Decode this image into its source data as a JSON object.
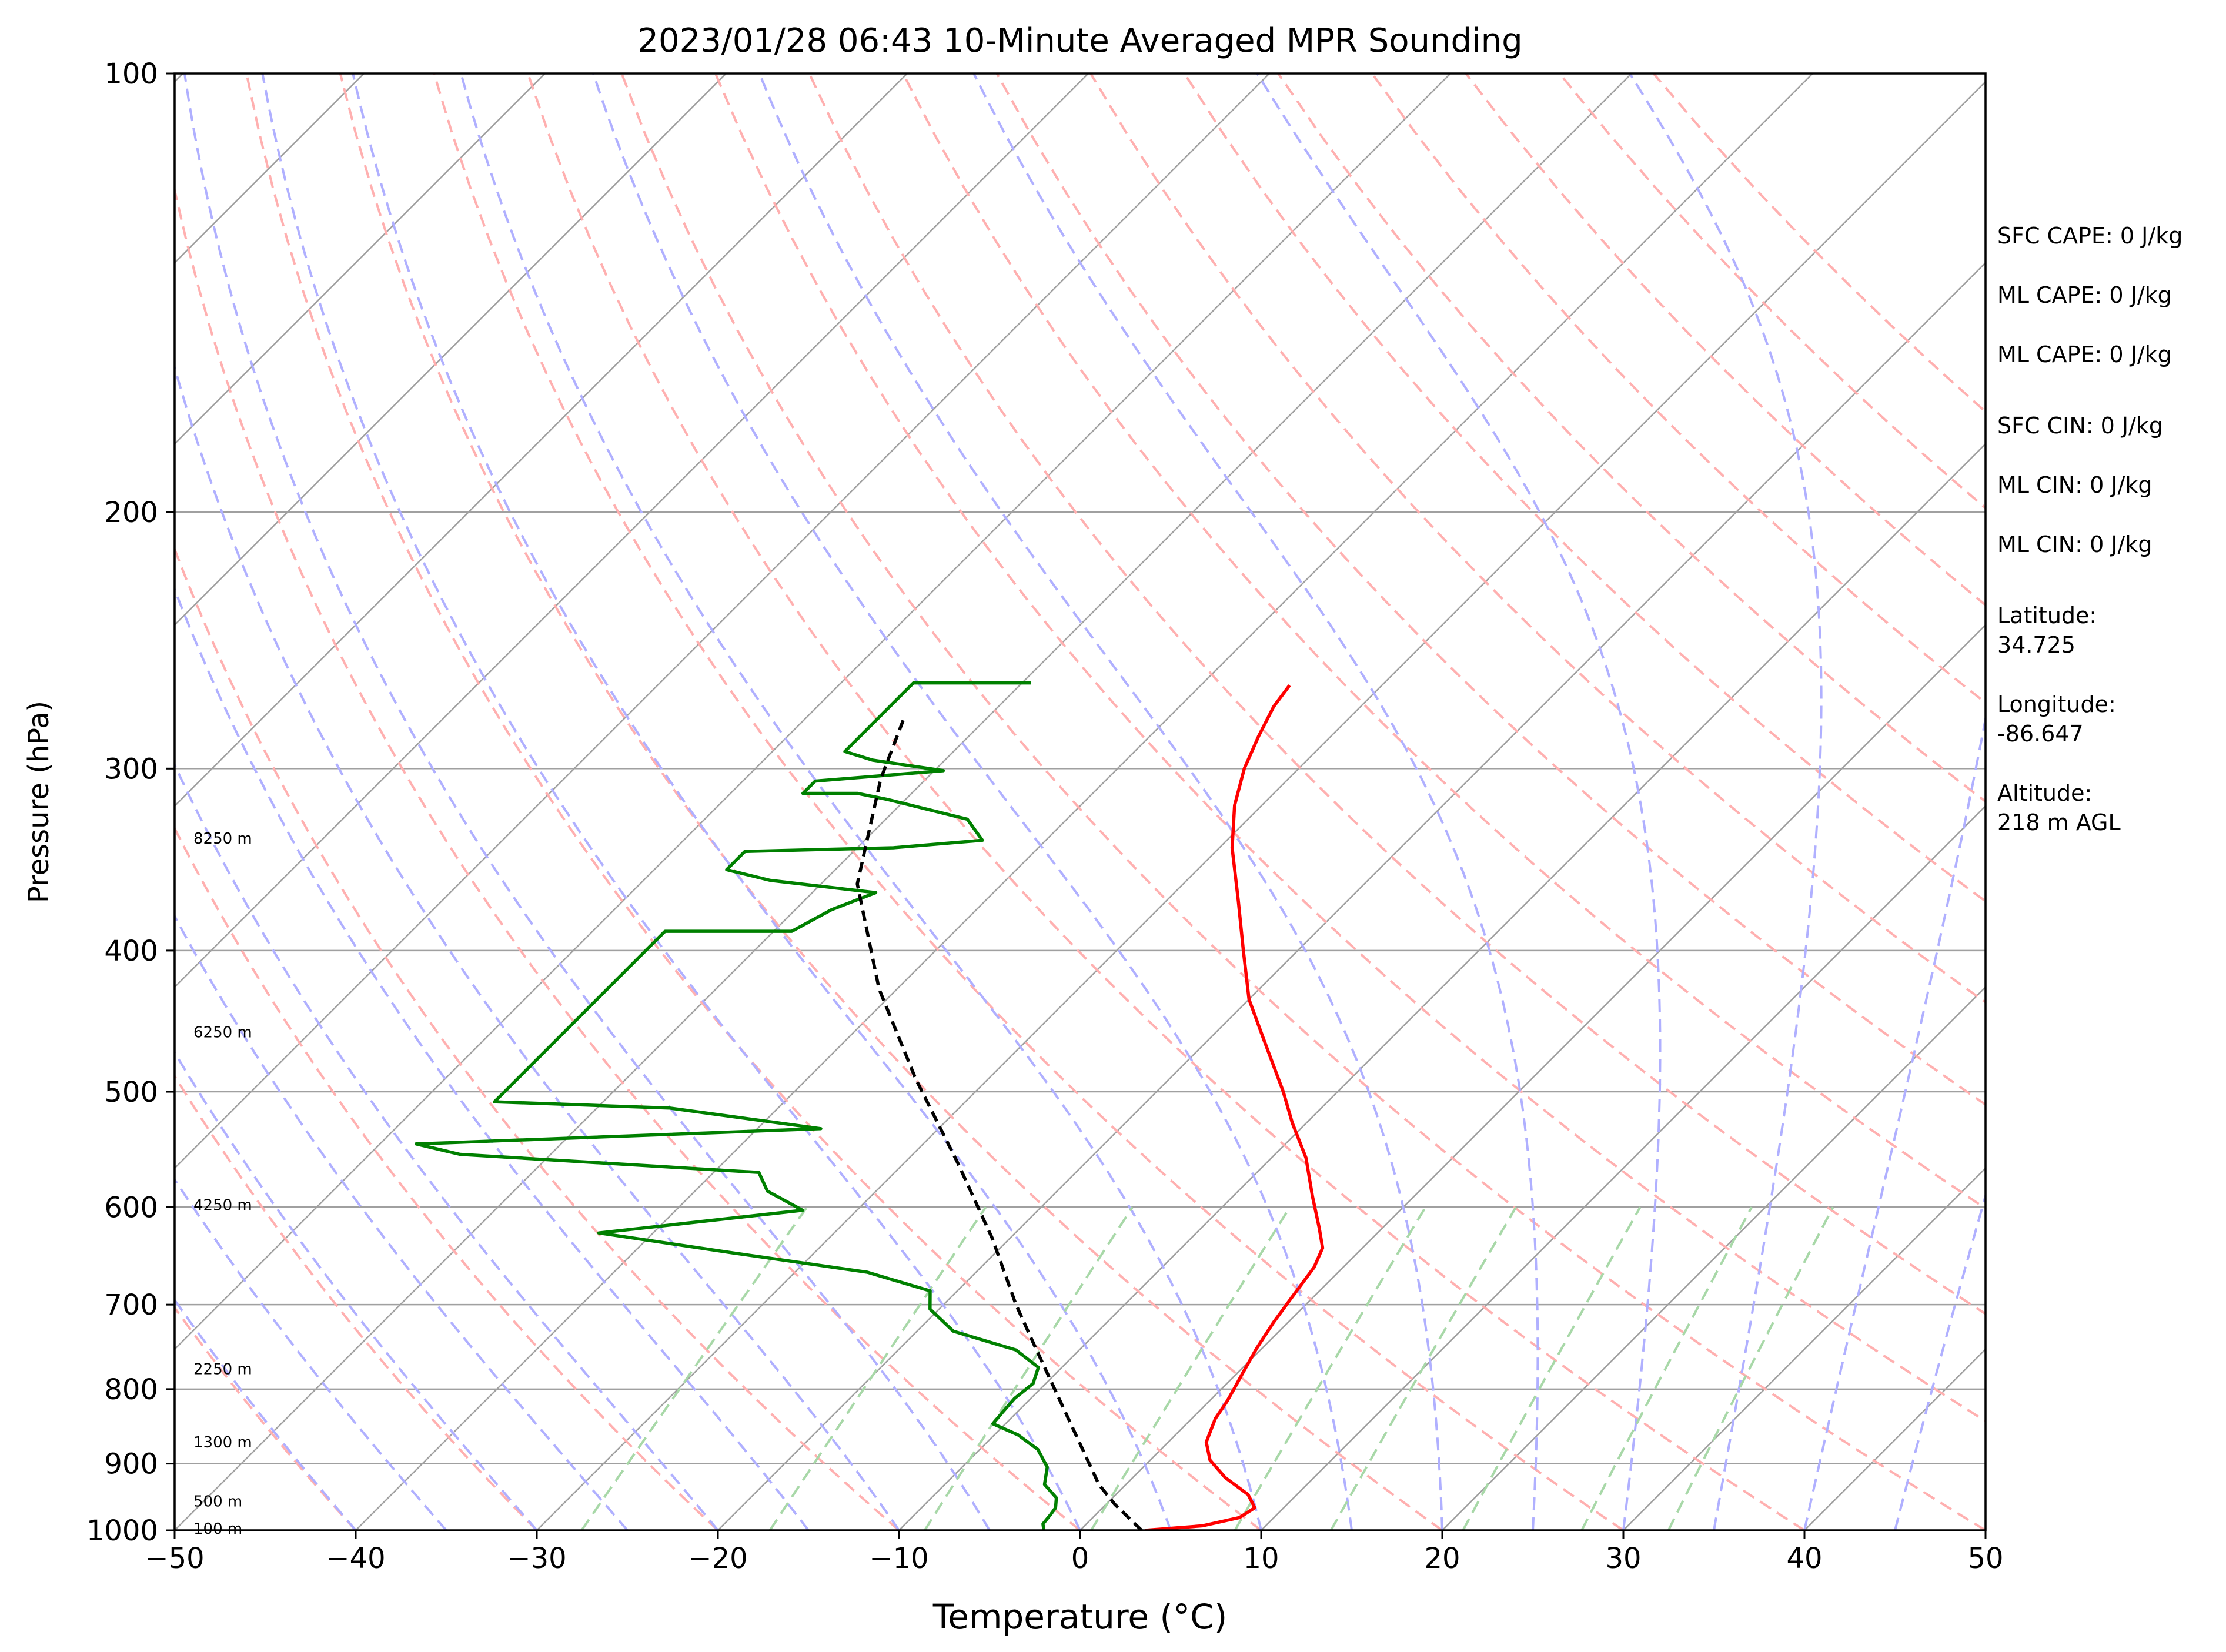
{
  "chart_data": {
    "type": "line",
    "title": "2023/01/28 06:43 10-Minute Averaged MPR Sounding",
    "xlabel": "Temperature (°C)",
    "ylabel": "Pressure (hPa)",
    "xlim": [
      -50,
      50
    ],
    "ylim": [
      1000,
      100
    ],
    "y_scale": "log",
    "x_ticks": [
      -50,
      -40,
      -30,
      -20,
      -10,
      0,
      10,
      20,
      30,
      40,
      50
    ],
    "x_tick_labels": [
      "−50",
      "−40",
      "−30",
      "−20",
      "−10",
      "0",
      "10",
      "20",
      "30",
      "40",
      "50"
    ],
    "y_ticks": [
      1000,
      900,
      800,
      700,
      600,
      500,
      400,
      300,
      200,
      100
    ],
    "y_tick_labels": [
      "1000",
      "900",
      "800",
      "700",
      "600",
      "500",
      "400",
      "300",
      "200",
      "100"
    ],
    "grid": true,
    "colors": {
      "temperature": "#ff0000",
      "dewpoint": "#008000",
      "parcel": "#000000",
      "isotherm": "#a0a0a0",
      "dry_adiabat": "#ffb0b0",
      "moist_adiabat": "#b0b0ff",
      "mixing_ratio": "#a8d8a8"
    },
    "series": [
      {
        "key": "temperature",
        "points": [
          [
            3.6,
            1000
          ],
          [
            6.5,
            993
          ],
          [
            8.1,
            980
          ],
          [
            8.4,
            965
          ],
          [
            7.3,
            945
          ],
          [
            5.1,
            920
          ],
          [
            3.3,
            895
          ],
          [
            2.1,
            870
          ],
          [
            1.6,
            850
          ],
          [
            1.3,
            838
          ],
          [
            1.0,
            816
          ],
          [
            0.7,
            800
          ],
          [
            0.3,
            780
          ],
          [
            -0.3,
            750
          ],
          [
            -0.8,
            720
          ],
          [
            -1.2,
            690
          ],
          [
            -1.6,
            660
          ],
          [
            -2.2,
            640
          ],
          [
            -3.5,
            620
          ],
          [
            -5.6,
            590
          ],
          [
            -8.1,
            555
          ],
          [
            -10.8,
            525
          ],
          [
            -13.0,
            500
          ],
          [
            -17.0,
            460
          ],
          [
            -20.0,
            432
          ],
          [
            -23.0,
            400
          ],
          [
            -26.0,
            370
          ],
          [
            -29.3,
            340
          ],
          [
            -31.5,
            318
          ],
          [
            -33.0,
            300
          ],
          [
            -34.0,
            285
          ],
          [
            -34.8,
            272
          ],
          [
            -35.1,
            263
          ]
        ]
      },
      {
        "key": "dewpoint",
        "points": [
          [
            -2.0,
            1000
          ],
          [
            -2.4,
            990
          ],
          [
            -2.5,
            975
          ],
          [
            -2.6,
            965
          ],
          [
            -3.1,
            950
          ],
          [
            -4.5,
            930
          ],
          [
            -5.3,
            905
          ],
          [
            -6.8,
            880
          ],
          [
            -8.7,
            860
          ],
          [
            -10.7,
            845
          ],
          [
            -10.8,
            830
          ],
          [
            -10.9,
            812
          ],
          [
            -10.7,
            793
          ],
          [
            -11.3,
            773
          ],
          [
            -13.5,
            752
          ],
          [
            -18.0,
            730
          ],
          [
            -20.5,
            705
          ],
          [
            -21.5,
            685
          ],
          [
            -26.0,
            665
          ],
          [
            -34.5,
            645
          ],
          [
            -43.0,
            625
          ],
          [
            -33.0,
            603
          ],
          [
            -36.0,
            585
          ],
          [
            -37.5,
            568
          ],
          [
            -55.0,
            552
          ],
          [
            -58.0,
            543
          ],
          [
            -36.5,
            530
          ],
          [
            -46.0,
            513
          ],
          [
            -56.0,
            508
          ],
          [
            -56.0,
            388
          ],
          [
            -49.0,
            388
          ],
          [
            -48.0,
            375
          ],
          [
            -46.5,
            365
          ],
          [
            -53.0,
            358
          ],
          [
            -56.0,
            352
          ],
          [
            -56.0,
            342
          ],
          [
            -48.0,
            340
          ],
          [
            -43.5,
            336
          ],
          [
            -45.5,
            325
          ],
          [
            -51.0,
            315
          ],
          [
            -53.0,
            312
          ],
          [
            -56.0,
            312
          ],
          [
            -56.0,
            306
          ],
          [
            -49.5,
            301
          ],
          [
            -54.0,
            296
          ],
          [
            -56.0,
            292
          ],
          [
            -56.0,
            262
          ],
          [
            -49.5,
            262
          ]
        ]
      },
      {
        "key": "parcel",
        "points": [
          [
            3.4,
            1000
          ],
          [
            0.5,
            960
          ],
          [
            -1.5,
            930
          ],
          [
            -5.5,
            860
          ],
          [
            -12.5,
            750
          ],
          [
            -16.0,
            700
          ],
          [
            -21.0,
            630
          ],
          [
            -27.0,
            560
          ],
          [
            -34.0,
            490
          ],
          [
            -41.0,
            425
          ],
          [
            -48.0,
            360
          ],
          [
            -52.5,
            305
          ],
          [
            -54.5,
            278
          ]
        ]
      }
    ],
    "height_labels": [
      "100 m",
      "500 m",
      "1300 m",
      "2250 m",
      "4250 m",
      "6250 m",
      "8250 m"
    ],
    "height_label_pressures": [
      997,
      955,
      870,
      775,
      598,
      455,
      335
    ],
    "annotations": [
      "SFC CAPE: 0 J/kg",
      "ML CAPE: 0 J/kg",
      "ML CAPE: 0 J/kg",
      "SFC CIN: 0 J/kg",
      "ML CIN: 0 J/kg",
      "ML CIN: 0 J/kg",
      "Latitude:",
      "34.725",
      "Longitude:",
      "-86.647",
      "Altitude:",
      "218 m AGL"
    ]
  }
}
